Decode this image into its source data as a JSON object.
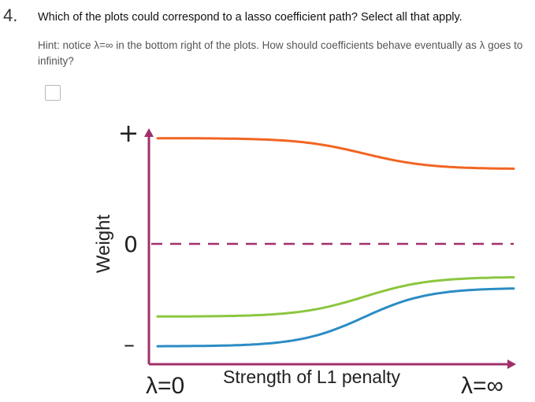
{
  "question": {
    "number": "4.",
    "text": "Which of the plots could correspond to a lasso coefficient path? Select all that apply.",
    "hint": "Hint: notice λ=∞ in the bottom right of the plots. How should coefficients behave eventually as λ goes to infinity?"
  },
  "option": {
    "checked": false
  },
  "chart_data": {
    "type": "line",
    "xlabel": "Strength of L1 penalty",
    "ylabel": "Weight",
    "x_start_label": "λ=0",
    "x_end_label": "λ=∞",
    "y_tick_labels": [
      "+",
      "0",
      "–"
    ],
    "colors": {
      "axis": "#a0306a",
      "zero_line": "#a0306a",
      "orange": "#f26522",
      "green": "#8cc63f",
      "blue": "#2b8cc4"
    },
    "series": [
      {
        "color_name": "orange",
        "shape": "sigmoid",
        "start_value": 0.96,
        "end_value": 0.68
      },
      {
        "color_name": "green",
        "shape": "sigmoid",
        "start_value": -0.66,
        "end_value": -0.3
      },
      {
        "color_name": "blue",
        "shape": "sigmoid",
        "start_value": -0.93,
        "end_value": -0.4
      }
    ]
  }
}
